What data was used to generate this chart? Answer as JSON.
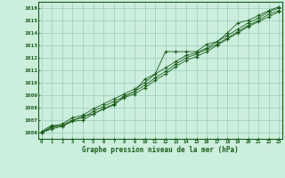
{
  "title": "Graphe pression niveau de la mer (hPa)",
  "xlabel_hours": [
    0,
    1,
    2,
    3,
    4,
    5,
    6,
    7,
    8,
    9,
    10,
    11,
    12,
    13,
    14,
    15,
    16,
    17,
    18,
    19,
    20,
    21,
    22,
    23
  ],
  "ylim": [
    1005.5,
    1016.5
  ],
  "xlim": [
    -0.3,
    23.3
  ],
  "yticks": [
    1006,
    1007,
    1008,
    1009,
    1010,
    1011,
    1012,
    1013,
    1014,
    1015,
    1016
  ],
  "background_color": "#cceedd",
  "grid_color": "#99ccbb",
  "line_color": "#1a5c1a",
  "line1": [
    1006.1,
    1006.6,
    1006.5,
    1007.0,
    1007.3,
    1007.5,
    1007.9,
    1008.2,
    1008.9,
    1009.3,
    1010.3,
    1010.7,
    1012.5,
    1012.5,
    1012.5,
    1012.5,
    1013.1,
    1013.3,
    1014.0,
    1014.8,
    1015.0,
    1015.4,
    1015.8,
    1016.1
  ],
  "line2": [
    1006.0,
    1006.5,
    1006.7,
    1007.2,
    1007.4,
    1007.9,
    1008.3,
    1008.7,
    1009.1,
    1009.5,
    1010.0,
    1010.7,
    1011.2,
    1011.7,
    1012.2,
    1012.4,
    1012.8,
    1013.3,
    1013.8,
    1014.3,
    1014.8,
    1015.2,
    1015.7,
    1016.0
  ],
  "line3": [
    1006.0,
    1006.4,
    1006.6,
    1007.0,
    1007.2,
    1007.7,
    1008.1,
    1008.5,
    1008.9,
    1009.3,
    1009.8,
    1010.4,
    1010.9,
    1011.5,
    1012.0,
    1012.3,
    1012.7,
    1013.1,
    1013.6,
    1014.1,
    1014.6,
    1015.0,
    1015.5,
    1015.8
  ],
  "line4": [
    1006.0,
    1006.3,
    1006.5,
    1006.9,
    1007.0,
    1007.5,
    1007.9,
    1008.3,
    1008.8,
    1009.1,
    1009.6,
    1010.2,
    1010.7,
    1011.3,
    1011.8,
    1012.1,
    1012.5,
    1013.0,
    1013.5,
    1014.0,
    1014.5,
    1014.9,
    1015.3,
    1015.7
  ]
}
